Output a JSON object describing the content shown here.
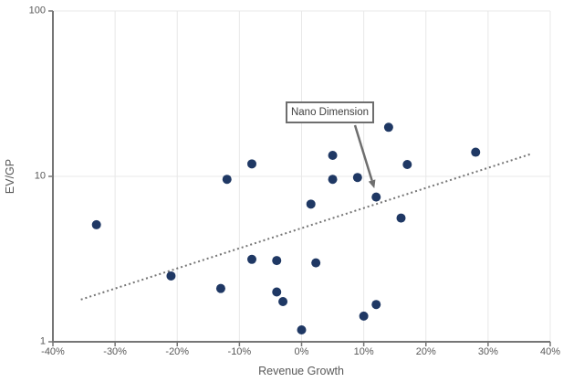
{
  "chart_data": {
    "type": "scatter",
    "title": "",
    "xlabel": "Revenue Growth",
    "ylabel": "EV/GP",
    "x_scale": "linear",
    "y_scale": "log",
    "xlim": [
      -40,
      40
    ],
    "ylim": [
      1,
      100
    ],
    "x_ticks": {
      "values": [
        -40,
        -30,
        -20,
        -10,
        0,
        10,
        20,
        30,
        40
      ],
      "labels": [
        "-40%",
        "-30%",
        "-20%",
        "-10%",
        "0%",
        "10%",
        "20%",
        "30%",
        "40%"
      ]
    },
    "y_ticks": {
      "values": [
        1,
        10,
        100
      ],
      "labels": [
        "1",
        "10",
        "100"
      ]
    },
    "grid": {
      "vertical": true,
      "horizontal": true
    },
    "legend": "none",
    "points": [
      [
        -33,
        5.1
      ],
      [
        -21,
        2.5
      ],
      [
        -13,
        2.1
      ],
      [
        -12,
        9.6
      ],
      [
        -8,
        11.9
      ],
      [
        -8,
        3.15
      ],
      [
        -4,
        3.1
      ],
      [
        -4,
        2.0
      ],
      [
        -3,
        1.75
      ],
      [
        0,
        1.18
      ],
      [
        1.5,
        6.8
      ],
      [
        2.3,
        3.0
      ],
      [
        5,
        13.4
      ],
      [
        5,
        9.6
      ],
      [
        9,
        9.85
      ],
      [
        10,
        1.43
      ],
      [
        12,
        7.5
      ],
      [
        12,
        1.68
      ],
      [
        14,
        19.8
      ],
      [
        16,
        5.6
      ],
      [
        17,
        11.8
      ],
      [
        28,
        14
      ]
    ],
    "trendline": {
      "style": "dotted",
      "x1": -35.5,
      "y1": 1.8,
      "x2": 37,
      "y2": 13.7
    },
    "annotation": {
      "label": "Nano Dimension",
      "target_point": [
        12,
        7.5
      ]
    },
    "colors": {
      "point": "#1f3864",
      "axis": "#767676",
      "tick_label": "#595959",
      "axis_title": "#595959",
      "grid": "#e8e8e8",
      "trendline": "#757575",
      "annotation_border": "#6e6e6e",
      "annotation_text": "#3f3f3f",
      "background": "#ffffff"
    }
  }
}
